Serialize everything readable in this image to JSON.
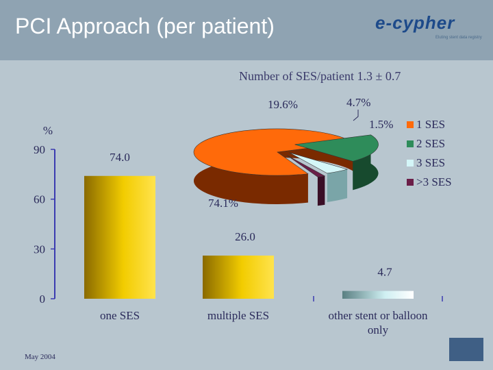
{
  "slide": {
    "title": "PCI Approach (per patient)",
    "subtitle": "Number of  SES/patient  1.3 ± 0.7",
    "footer": "May 2004",
    "logo_text": "e-cypher",
    "logo_tagline": "Eluting stent data registry"
  },
  "colors": {
    "header": "#8fa3b2",
    "background": "#b8c6cf",
    "bar_gold": "#f2cc00",
    "bar_cyan": "#cfeff2",
    "slice_orange": "#ff6a0a",
    "slice_green": "#2e8c5a",
    "slice_cyan": "#d4f6f8",
    "slice_purple": "#6b1e48"
  },
  "chart_data": [
    {
      "type": "bar",
      "categories": [
        "one SES",
        "multiple SES",
        "other stent or balloon only"
      ],
      "values": [
        74.0,
        26.0,
        4.7
      ],
      "value_labels": [
        "74.0",
        "26.0",
        "4.7"
      ],
      "ylabel": "%",
      "ylim": [
        0,
        90
      ],
      "yticks": [
        0,
        30,
        60,
        90
      ],
      "grid": false
    },
    {
      "type": "pie",
      "labels": [
        "1 SES",
        "2 SES",
        "3 SES",
        ">3 SES"
      ],
      "values": [
        74.1,
        19.6,
        4.7,
        1.5
      ],
      "value_labels": [
        "74.1%",
        "19.6%",
        "4.7%",
        "1.5%"
      ],
      "legend": "right"
    }
  ]
}
